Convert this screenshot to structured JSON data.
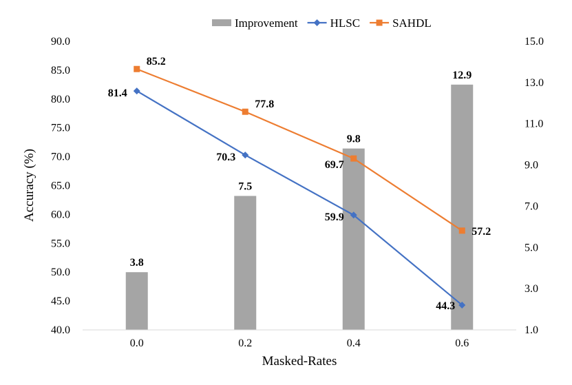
{
  "chart_data": {
    "type": "bar+line",
    "categories": [
      "0.0",
      "0.2",
      "0.4",
      "0.6"
    ],
    "xlabel": "Masked-Rates",
    "ylabel": "Accuracy (%)",
    "ylim": [
      40,
      90
    ],
    "y_ticks": [
      "40.0",
      "45.0",
      "50.0",
      "55.0",
      "60.0",
      "65.0",
      "70.0",
      "75.0",
      "80.0",
      "85.0",
      "90.0"
    ],
    "y2lim": [
      1,
      15
    ],
    "y2_ticks": [
      "1.0",
      "3.0",
      "5.0",
      "7.0",
      "9.0",
      "11.0",
      "13.0",
      "15.0"
    ],
    "grid": false,
    "legend_position": "top-center",
    "series": [
      {
        "name": "Improvement",
        "kind": "bar",
        "axis": "right",
        "color": "#a5a5a5",
        "values": [
          3.8,
          7.5,
          9.8,
          12.9
        ],
        "labels": [
          "3.8",
          "7.5",
          "9.8",
          "12.9"
        ]
      },
      {
        "name": "HLSC",
        "kind": "line",
        "marker": "diamond",
        "axis": "left",
        "color": "#4472c4",
        "values": [
          81.4,
          70.3,
          59.9,
          44.3
        ],
        "labels": [
          "81.4",
          "70.3",
          "59.9",
          "44.3"
        ]
      },
      {
        "name": "SAHDL",
        "kind": "line",
        "marker": "square",
        "axis": "left",
        "color": "#ed7d31",
        "values": [
          85.2,
          77.8,
          69.7,
          57.2
        ],
        "labels": [
          "85.2",
          "77.8",
          "69.7",
          "57.2"
        ]
      }
    ]
  }
}
